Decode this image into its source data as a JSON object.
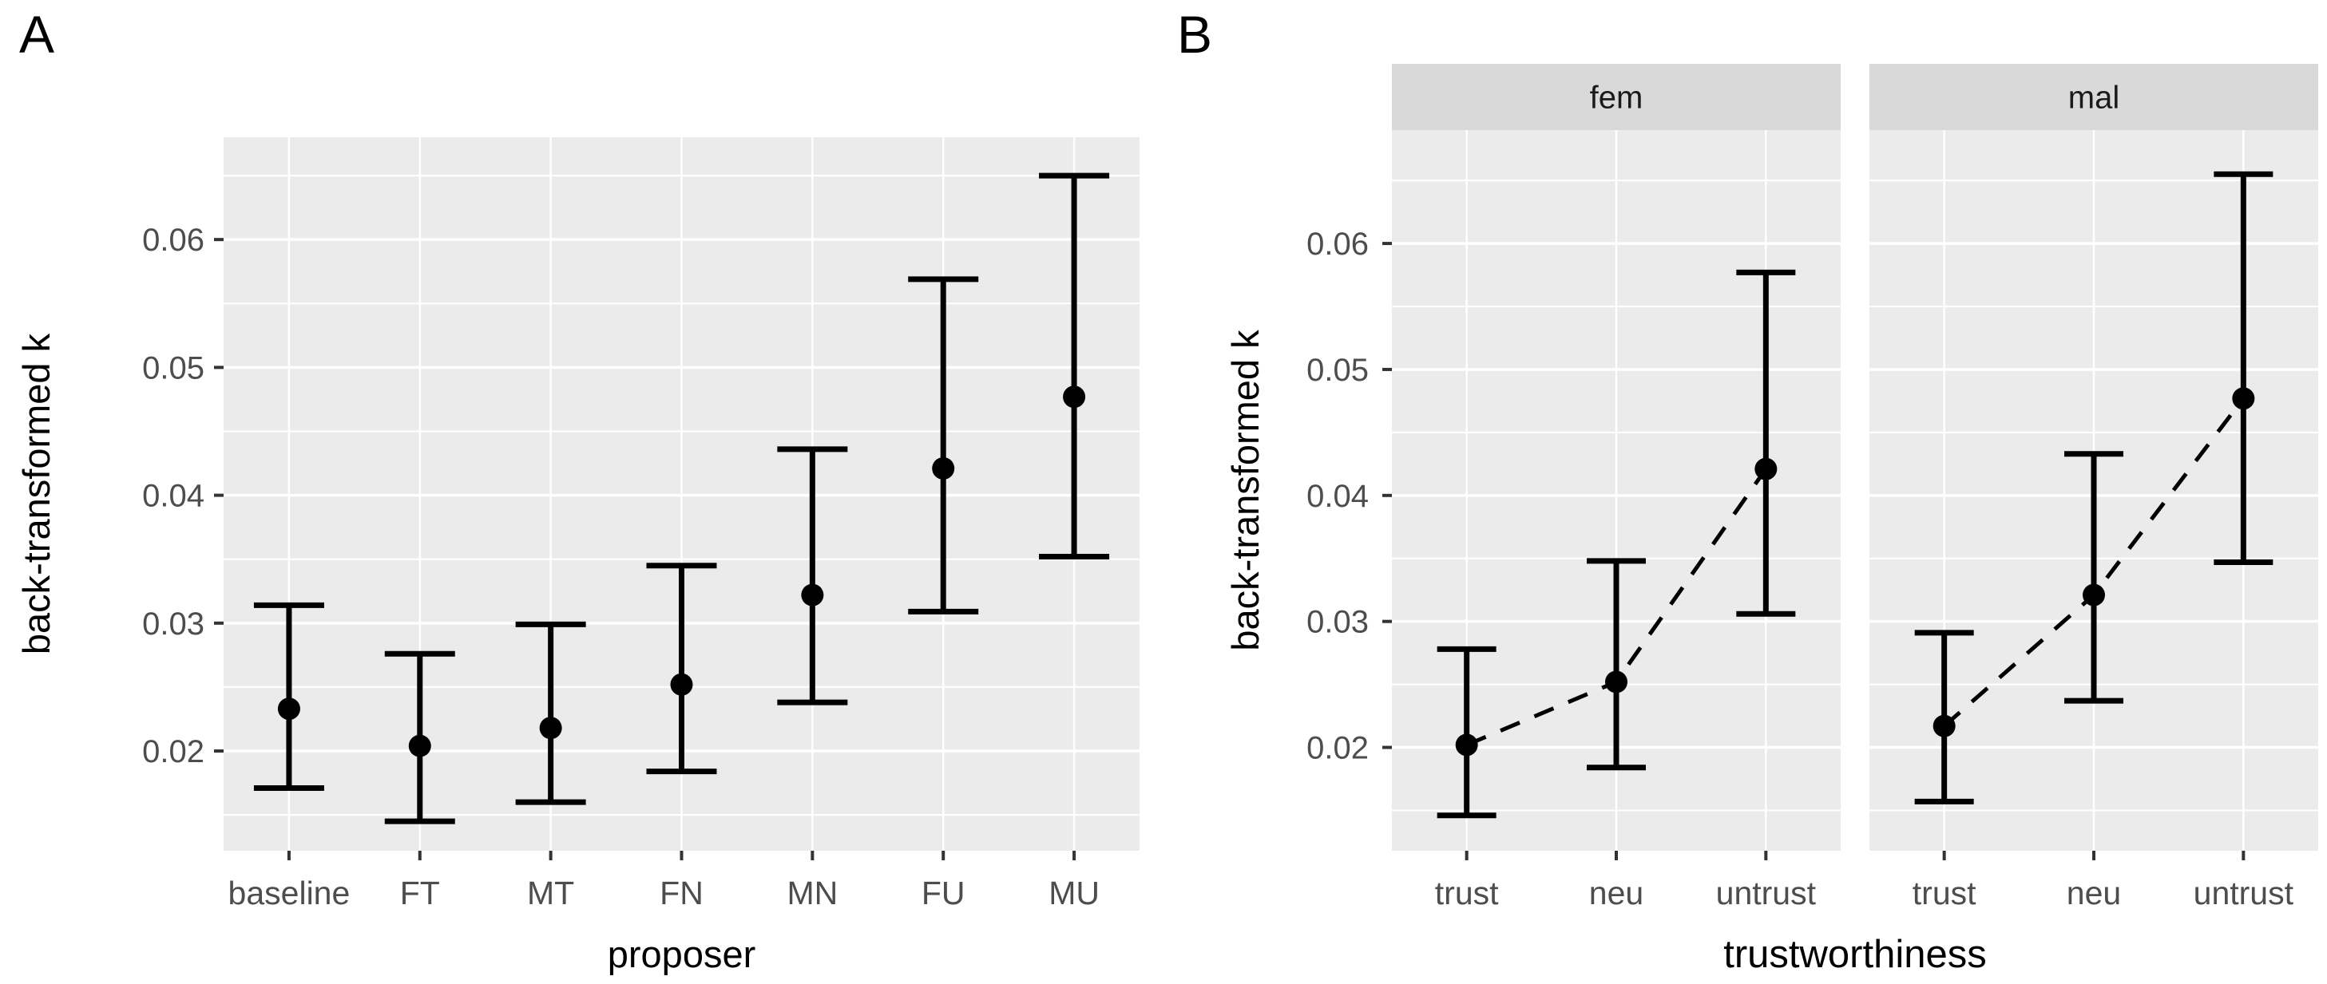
{
  "panels": {
    "a_label": "A",
    "b_label": "B"
  },
  "colors": {
    "page_background": "#FFFFFF",
    "panel_background": "#EBEBEB",
    "grid_major": "#FFFFFF",
    "grid_minor": "#FFFFFF",
    "strip_background": "#D9D9D9",
    "strip_text": "#1A1A1A",
    "axis_text": "#4D4D4D",
    "axis_title": "#000000",
    "tick_mark": "#333333",
    "data_color": "#000000"
  },
  "chart_data": [
    {
      "id": "panel-a",
      "type": "pointrange",
      "panel_label": "A",
      "xlabel": "proposer",
      "ylabel": "back-transformed k",
      "categories": [
        "baseline",
        "FT",
        "MT",
        "FN",
        "MN",
        "FU",
        "MU"
      ],
      "series": [
        {
          "category": "baseline",
          "estimate": 0.0233,
          "lower": 0.0171,
          "upper": 0.0314
        },
        {
          "category": "FT",
          "estimate": 0.0204,
          "lower": 0.0145,
          "upper": 0.0276
        },
        {
          "category": "MT",
          "estimate": 0.0218,
          "lower": 0.016,
          "upper": 0.0299
        },
        {
          "category": "FN",
          "estimate": 0.0252,
          "lower": 0.0184,
          "upper": 0.0345
        },
        {
          "category": "MN",
          "estimate": 0.0322,
          "lower": 0.0238,
          "upper": 0.0436
        },
        {
          "category": "FU",
          "estimate": 0.0421,
          "lower": 0.0309,
          "upper": 0.0569
        },
        {
          "category": "MU",
          "estimate": 0.0477,
          "lower": 0.0352,
          "upper": 0.065
        }
      ],
      "yticks": [
        0.02,
        0.03,
        0.04,
        0.05,
        0.06
      ],
      "ytick_labels": [
        "0.02",
        "0.03",
        "0.04",
        "0.05",
        "0.06"
      ],
      "yminor": [
        0.015,
        0.025,
        0.035,
        0.045,
        0.055,
        0.065
      ],
      "ylim": [
        0.0122,
        0.068
      ],
      "grid": true,
      "legend": "none",
      "connect": false
    },
    {
      "id": "panel-b",
      "type": "pointrange",
      "panel_label": "B",
      "xlabel": "trustworthiness",
      "ylabel": "back-transformed k",
      "categories": [
        "trust",
        "neu",
        "untrust"
      ],
      "facets": [
        {
          "label": "fem",
          "series": [
            {
              "category": "trust",
              "estimate": 0.0202,
              "lower": 0.0146,
              "upper": 0.0278
            },
            {
              "category": "neu",
              "estimate": 0.0252,
              "lower": 0.0184,
              "upper": 0.0348
            },
            {
              "category": "untrust",
              "estimate": 0.0421,
              "lower": 0.0306,
              "upper": 0.0577
            }
          ]
        },
        {
          "label": "mal",
          "series": [
            {
              "category": "trust",
              "estimate": 0.0217,
              "lower": 0.0157,
              "upper": 0.0291
            },
            {
              "category": "neu",
              "estimate": 0.0321,
              "lower": 0.0237,
              "upper": 0.0433
            },
            {
              "category": "untrust",
              "estimate": 0.0477,
              "lower": 0.0347,
              "upper": 0.0655
            }
          ]
        }
      ],
      "yticks": [
        0.02,
        0.03,
        0.04,
        0.05,
        0.06
      ],
      "ytick_labels": [
        "0.02",
        "0.03",
        "0.04",
        "0.05",
        "0.06"
      ],
      "yminor": [
        0.015,
        0.025,
        0.035,
        0.045,
        0.055,
        0.065
      ],
      "ylim": [
        0.0118,
        0.069
      ],
      "grid": true,
      "legend": "none",
      "connect": true,
      "line_style": "dashed"
    }
  ]
}
